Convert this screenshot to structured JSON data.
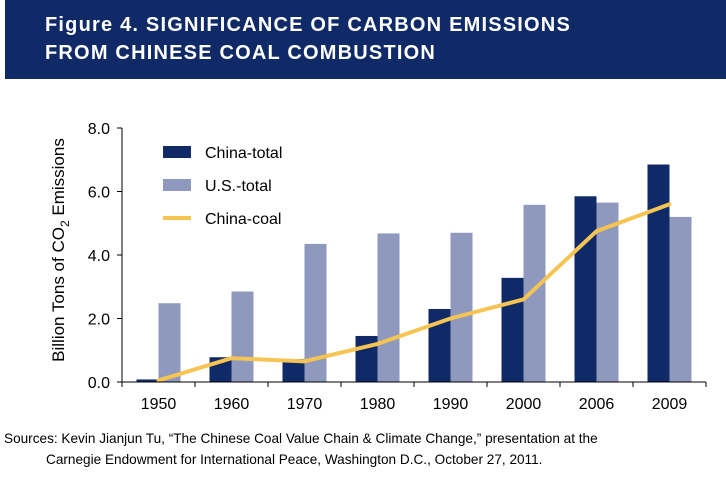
{
  "header": {
    "title_line1": "Figure 4. SIGNIFICANCE OF CARBON EMISSIONS",
    "title_line2": "FROM CHINESE COAL COMBUSTION"
  },
  "source": {
    "line1": "Sources: Kevin Jianjun Tu, “The Chinese Coal Value Chain & Climate Change,” presentation at the",
    "line2": "Carnegie Endowment for International Peace, Washington D.C., October 27, 2011."
  },
  "chart_data": {
    "type": "bar",
    "title": "Figure 4. SIGNIFICANCE OF CARBON EMISSIONS FROM CHINESE COAL COMBUSTION",
    "ylabel_parts": [
      "Billion Tons of CO",
      "2",
      " Emissions"
    ],
    "xlabel": "",
    "ylim": [
      0,
      8
    ],
    "yticks": [
      "0.0",
      "2.0",
      "4.0",
      "6.0",
      "8.0"
    ],
    "ytick_values": [
      0,
      2,
      4,
      6,
      8
    ],
    "categories": [
      "1950",
      "1960",
      "1970",
      "1980",
      "1990",
      "2000",
      "2006",
      "2009"
    ],
    "series": [
      {
        "name": "China-total",
        "kind": "bar",
        "color": "#0f2a66",
        "values": [
          0.08,
          0.78,
          0.72,
          1.45,
          2.3,
          3.28,
          5.85,
          6.85
        ]
      },
      {
        "name": "U.S.-total",
        "kind": "bar",
        "color": "#8e99bd",
        "values": [
          2.48,
          2.85,
          4.35,
          4.68,
          4.7,
          5.58,
          5.65,
          5.2
        ]
      },
      {
        "name": "China-coal",
        "kind": "line",
        "color": "#f5c453",
        "values": [
          0.05,
          0.75,
          0.65,
          1.2,
          2.0,
          2.6,
          4.75,
          5.6
        ]
      }
    ],
    "grid": false,
    "legend_position": "top-left"
  }
}
